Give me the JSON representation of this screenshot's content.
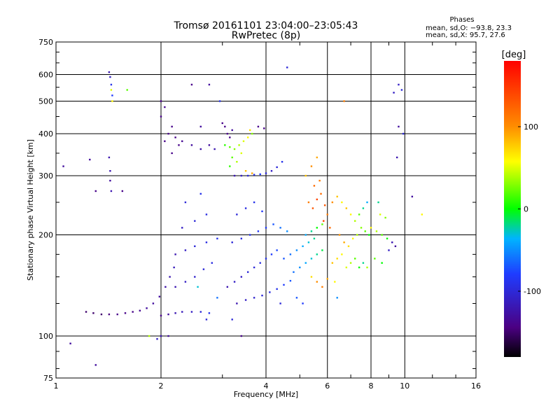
{
  "chart_data": {
    "type": "scatter",
    "title": "Tromsø 20161101 23:04:00–23:05:43",
    "subtitle": "RwPretec (8p)",
    "stats": {
      "heading": "Phases",
      "line_o": "mean, sd,O: −93.8, 23.3",
      "line_x": "mean, sd,X:  95.7, 27.6"
    },
    "xlabel": "Frequency [MHz]",
    "ylabel": "Stationary phase Virtual Height [km]",
    "x_scale": "log",
    "y_scale": "log",
    "xlim": [
      1,
      16
    ],
    "ylim": [
      75,
      750
    ],
    "x_ticks": [
      {
        "v": 1,
        "label": "1"
      },
      {
        "v": 2,
        "label": "2"
      },
      {
        "v": 4,
        "label": "4"
      },
      {
        "v": 6,
        "label": "6"
      },
      {
        "v": 8,
        "label": "8"
      },
      {
        "v": 10,
        "label": "10"
      },
      {
        "v": 16,
        "label": "16"
      }
    ],
    "y_ticks": [
      {
        "v": 75,
        "label": "75"
      },
      {
        "v": 100,
        "label": "100"
      },
      {
        "v": 200,
        "label": "200"
      },
      {
        "v": 300,
        "label": "300"
      },
      {
        "v": 400,
        "label": "400"
      },
      {
        "v": 500,
        "label": "500"
      },
      {
        "v": 600,
        "label": "600"
      },
      {
        "v": 750,
        "label": "750"
      }
    ],
    "grid": true,
    "colorbar": {
      "label": "[deg]",
      "range": [
        -180,
        180
      ],
      "ticks": [
        {
          "v": 100,
          "label": "100"
        },
        {
          "v": 0,
          "label": "0"
        },
        {
          "v": -100,
          "label": "-100"
        }
      ]
    },
    "series": [
      {
        "f": 1.22,
        "h": 118,
        "p": -150
      },
      {
        "f": 1.28,
        "h": 117,
        "p": -150
      },
      {
        "f": 1.35,
        "h": 116,
        "p": -150
      },
      {
        "f": 1.42,
        "h": 116,
        "p": -145
      },
      {
        "f": 1.5,
        "h": 116,
        "p": -140
      },
      {
        "f": 1.58,
        "h": 117,
        "p": -140
      },
      {
        "f": 1.66,
        "h": 118,
        "p": -140
      },
      {
        "f": 1.74,
        "h": 119,
        "p": -135
      },
      {
        "f": 1.82,
        "h": 121,
        "p": -130
      },
      {
        "f": 1.9,
        "h": 125,
        "p": -130
      },
      {
        "f": 1.98,
        "h": 131,
        "p": -130
      },
      {
        "f": 2.06,
        "h": 140,
        "p": -125
      },
      {
        "f": 2.12,
        "h": 150,
        "p": -120
      },
      {
        "f": 2.18,
        "h": 160,
        "p": -115
      },
      {
        "f": 2.0,
        "h": 115,
        "p": -140
      },
      {
        "f": 2.1,
        "h": 116,
        "p": -130
      },
      {
        "f": 2.2,
        "h": 117,
        "p": -120
      },
      {
        "f": 2.3,
        "h": 118,
        "p": -115
      },
      {
        "f": 2.45,
        "h": 118,
        "p": -110
      },
      {
        "f": 2.6,
        "h": 118,
        "p": -100
      },
      {
        "f": 2.75,
        "h": 117,
        "p": -90
      },
      {
        "f": 2.2,
        "h": 140,
        "p": -120
      },
      {
        "f": 2.35,
        "h": 145,
        "p": -110
      },
      {
        "f": 2.5,
        "h": 150,
        "p": -105
      },
      {
        "f": 2.65,
        "h": 158,
        "p": -100
      },
      {
        "f": 2.8,
        "h": 165,
        "p": -95
      },
      {
        "f": 2.2,
        "h": 175,
        "p": -120
      },
      {
        "f": 2.35,
        "h": 180,
        "p": -110
      },
      {
        "f": 2.5,
        "h": 185,
        "p": -100
      },
      {
        "f": 2.7,
        "h": 190,
        "p": -95
      },
      {
        "f": 2.9,
        "h": 195,
        "p": -90
      },
      {
        "f": 2.3,
        "h": 210,
        "p": -110
      },
      {
        "f": 2.5,
        "h": 220,
        "p": -100
      },
      {
        "f": 2.7,
        "h": 230,
        "p": -95
      },
      {
        "f": 2.35,
        "h": 250,
        "p": -100
      },
      {
        "f": 2.6,
        "h": 265,
        "p": -90
      },
      {
        "f": 2.05,
        "h": 380,
        "p": -140
      },
      {
        "f": 2.1,
        "h": 400,
        "p": -140
      },
      {
        "f": 2.15,
        "h": 420,
        "p": -140
      },
      {
        "f": 2.2,
        "h": 390,
        "p": -140
      },
      {
        "f": 2.25,
        "h": 370,
        "p": -140
      },
      {
        "f": 2.0,
        "h": 450,
        "p": -140
      },
      {
        "f": 2.05,
        "h": 480,
        "p": -135
      },
      {
        "f": 2.15,
        "h": 350,
        "p": -140
      },
      {
        "f": 2.3,
        "h": 380,
        "p": -135
      },
      {
        "f": 2.45,
        "h": 370,
        "p": -130
      },
      {
        "f": 2.6,
        "h": 360,
        "p": -125
      },
      {
        "f": 2.75,
        "h": 370,
        "p": -130
      },
      {
        "f": 2.85,
        "h": 360,
        "p": -120
      },
      {
        "f": 2.6,
        "h": 420,
        "p": -130
      },
      {
        "f": 2.95,
        "h": 500,
        "p": -90
      },
      {
        "f": 3.05,
        "h": 420,
        "p": -140
      },
      {
        "f": 3.1,
        "h": 400,
        "p": -140
      },
      {
        "f": 3.15,
        "h": 390,
        "p": -140
      },
      {
        "f": 3.2,
        "h": 410,
        "p": -130
      },
      {
        "f": 3.0,
        "h": 430,
        "p": -140
      },
      {
        "f": 3.05,
        "h": 370,
        "p": 10
      },
      {
        "f": 3.15,
        "h": 365,
        "p": 20
      },
      {
        "f": 3.25,
        "h": 360,
        "p": 30
      },
      {
        "f": 3.35,
        "h": 370,
        "p": 40
      },
      {
        "f": 3.45,
        "h": 380,
        "p": 50
      },
      {
        "f": 3.55,
        "h": 390,
        "p": 60
      },
      {
        "f": 3.65,
        "h": 400,
        "p": 30
      },
      {
        "f": 3.2,
        "h": 340,
        "p": 20
      },
      {
        "f": 3.3,
        "h": 330,
        "p": 40
      },
      {
        "f": 3.15,
        "h": 320,
        "p": 10
      },
      {
        "f": 3.4,
        "h": 350,
        "p": 50
      },
      {
        "f": 3.6,
        "h": 410,
        "p": 70
      },
      {
        "f": 3.25,
        "h": 300,
        "p": -120
      },
      {
        "f": 3.4,
        "h": 300,
        "p": -110
      },
      {
        "f": 3.55,
        "h": 300,
        "p": -100
      },
      {
        "f": 3.7,
        "h": 302,
        "p": -90
      },
      {
        "f": 3.85,
        "h": 303,
        "p": -80
      },
      {
        "f": 4.0,
        "h": 305,
        "p": -100
      },
      {
        "f": 4.15,
        "h": 310,
        "p": -110
      },
      {
        "f": 4.3,
        "h": 318,
        "p": -100
      },
      {
        "f": 4.45,
        "h": 330,
        "p": -90
      },
      {
        "f": 3.5,
        "h": 310,
        "p": 80
      },
      {
        "f": 3.65,
        "h": 305,
        "p": 90
      },
      {
        "f": 3.8,
        "h": 420,
        "p": -140
      },
      {
        "f": 3.95,
        "h": 415,
        "p": -140
      },
      {
        "f": 3.1,
        "h": 140,
        "p": -120
      },
      {
        "f": 3.25,
        "h": 145,
        "p": -110
      },
      {
        "f": 3.4,
        "h": 150,
        "p": -110
      },
      {
        "f": 3.55,
        "h": 155,
        "p": -100
      },
      {
        "f": 3.7,
        "h": 160,
        "p": -100
      },
      {
        "f": 3.85,
        "h": 165,
        "p": -95
      },
      {
        "f": 4.0,
        "h": 170,
        "p": -90
      },
      {
        "f": 4.15,
        "h": 175,
        "p": -80
      },
      {
        "f": 4.3,
        "h": 180,
        "p": -75
      },
      {
        "f": 3.3,
        "h": 125,
        "p": -120
      },
      {
        "f": 3.5,
        "h": 128,
        "p": -110
      },
      {
        "f": 3.7,
        "h": 130,
        "p": -105
      },
      {
        "f": 3.9,
        "h": 132,
        "p": -100
      },
      {
        "f": 4.1,
        "h": 135,
        "p": -95
      },
      {
        "f": 4.3,
        "h": 138,
        "p": -90
      },
      {
        "f": 4.5,
        "h": 142,
        "p": -80
      },
      {
        "f": 4.7,
        "h": 146,
        "p": -70
      },
      {
        "f": 3.2,
        "h": 190,
        "p": -100
      },
      {
        "f": 3.4,
        "h": 195,
        "p": -95
      },
      {
        "f": 3.6,
        "h": 200,
        "p": -90
      },
      {
        "f": 3.8,
        "h": 205,
        "p": -85
      },
      {
        "f": 4.0,
        "h": 210,
        "p": -80
      },
      {
        "f": 4.2,
        "h": 215,
        "p": -70
      },
      {
        "f": 4.4,
        "h": 210,
        "p": -60
      },
      {
        "f": 4.6,
        "h": 205,
        "p": -50
      },
      {
        "f": 3.3,
        "h": 230,
        "p": -100
      },
      {
        "f": 3.5,
        "h": 240,
        "p": -95
      },
      {
        "f": 3.7,
        "h": 250,
        "p": -90
      },
      {
        "f": 3.9,
        "h": 235,
        "p": -85
      },
      {
        "f": 4.5,
        "h": 170,
        "p": -70
      },
      {
        "f": 4.7,
        "h": 175,
        "p": -60
      },
      {
        "f": 4.9,
        "h": 180,
        "p": -50
      },
      {
        "f": 5.1,
        "h": 185,
        "p": -40
      },
      {
        "f": 5.3,
        "h": 190,
        "p": -30
      },
      {
        "f": 5.5,
        "h": 195,
        "p": -20
      },
      {
        "f": 4.8,
        "h": 155,
        "p": -60
      },
      {
        "f": 5.0,
        "h": 160,
        "p": -50
      },
      {
        "f": 5.2,
        "h": 165,
        "p": -40
      },
      {
        "f": 5.4,
        "h": 170,
        "p": -30
      },
      {
        "f": 5.6,
        "h": 175,
        "p": -20
      },
      {
        "f": 5.8,
        "h": 180,
        "p": -10
      },
      {
        "f": 5.2,
        "h": 200,
        "p": -40
      },
      {
        "f": 5.4,
        "h": 205,
        "p": -20
      },
      {
        "f": 5.6,
        "h": 210,
        "p": 0
      },
      {
        "f": 5.8,
        "h": 215,
        "p": 20
      },
      {
        "f": 5.3,
        "h": 250,
        "p": 110
      },
      {
        "f": 5.45,
        "h": 240,
        "p": 130
      },
      {
        "f": 5.6,
        "h": 255,
        "p": 140
      },
      {
        "f": 5.75,
        "h": 265,
        "p": 120
      },
      {
        "f": 5.9,
        "h": 245,
        "p": 130
      },
      {
        "f": 6.0,
        "h": 230,
        "p": 110
      },
      {
        "f": 5.5,
        "h": 280,
        "p": 120
      },
      {
        "f": 5.7,
        "h": 290,
        "p": 110
      },
      {
        "f": 5.85,
        "h": 220,
        "p": 140
      },
      {
        "f": 6.1,
        "h": 210,
        "p": 120
      },
      {
        "f": 5.4,
        "h": 320,
        "p": 100
      },
      {
        "f": 5.6,
        "h": 340,
        "p": 90
      },
      {
        "f": 5.2,
        "h": 300,
        "p": 80
      },
      {
        "f": 6.2,
        "h": 250,
        "p": 100
      },
      {
        "f": 6.4,
        "h": 260,
        "p": 80
      },
      {
        "f": 6.6,
        "h": 250,
        "p": 60
      },
      {
        "f": 6.8,
        "h": 240,
        "p": 80
      },
      {
        "f": 7.0,
        "h": 230,
        "p": 60
      },
      {
        "f": 7.2,
        "h": 220,
        "p": 40
      },
      {
        "f": 7.4,
        "h": 230,
        "p": 20
      },
      {
        "f": 7.6,
        "h": 240,
        "p": -20
      },
      {
        "f": 7.8,
        "h": 250,
        "p": -40
      },
      {
        "f": 6.5,
        "h": 200,
        "p": 100
      },
      {
        "f": 6.7,
        "h": 190,
        "p": 90
      },
      {
        "f": 6.9,
        "h": 185,
        "p": 70
      },
      {
        "f": 7.1,
        "h": 195,
        "p": 60
      },
      {
        "f": 7.3,
        "h": 200,
        "p": 40
      },
      {
        "f": 7.5,
        "h": 210,
        "p": 30
      },
      {
        "f": 7.7,
        "h": 205,
        "p": 20
      },
      {
        "f": 7.9,
        "h": 200,
        "p": 0
      },
      {
        "f": 6.2,
        "h": 165,
        "p": 80
      },
      {
        "f": 6.4,
        "h": 170,
        "p": 70
      },
      {
        "f": 6.6,
        "h": 175,
        "p": 60
      },
      {
        "f": 6.8,
        "h": 160,
        "p": 50
      },
      {
        "f": 7.0,
        "h": 165,
        "p": 40
      },
      {
        "f": 7.2,
        "h": 170,
        "p": 20
      },
      {
        "f": 7.4,
        "h": 160,
        "p": 0
      },
      {
        "f": 7.6,
        "h": 165,
        "p": -20
      },
      {
        "f": 5.6,
        "h": 145,
        "p": 100
      },
      {
        "f": 5.8,
        "h": 140,
        "p": 110
      },
      {
        "f": 6.0,
        "h": 148,
        "p": 90
      },
      {
        "f": 5.4,
        "h": 150,
        "p": 70
      },
      {
        "f": 6.3,
        "h": 145,
        "p": 60
      },
      {
        "f": 8.0,
        "h": 210,
        "p": 60
      },
      {
        "f": 8.3,
        "h": 205,
        "p": 40
      },
      {
        "f": 8.6,
        "h": 200,
        "p": 20
      },
      {
        "f": 8.9,
        "h": 195,
        "p": 0
      },
      {
        "f": 9.2,
        "h": 190,
        "p": -120
      },
      {
        "f": 9.4,
        "h": 185,
        "p": -130
      },
      {
        "f": 9.0,
        "h": 180,
        "p": -110
      },
      {
        "f": 8.5,
        "h": 230,
        "p": 50
      },
      {
        "f": 8.8,
        "h": 225,
        "p": 30
      },
      {
        "f": 8.2,
        "h": 170,
        "p": 20
      },
      {
        "f": 8.6,
        "h": 165,
        "p": 0
      },
      {
        "f": 7.8,
        "h": 160,
        "p": 40
      },
      {
        "f": 8.4,
        "h": 250,
        "p": -20
      },
      {
        "f": 9.6,
        "h": 560,
        "p": -110
      },
      {
        "f": 9.8,
        "h": 540,
        "p": -100
      },
      {
        "f": 9.3,
        "h": 530,
        "p": -110
      },
      {
        "f": 9.6,
        "h": 420,
        "p": -130
      },
      {
        "f": 9.9,
        "h": 400,
        "p": -100
      },
      {
        "f": 9.5,
        "h": 340,
        "p": -120
      },
      {
        "f": 10.5,
        "h": 260,
        "p": -130
      },
      {
        "f": 11.2,
        "h": 230,
        "p": 60
      },
      {
        "f": 1.42,
        "h": 610,
        "p": -120
      },
      {
        "f": 1.43,
        "h": 590,
        "p": -110
      },
      {
        "f": 1.44,
        "h": 560,
        "p": -90
      },
      {
        "f": 1.44,
        "h": 540,
        "p": 50
      },
      {
        "f": 1.45,
        "h": 520,
        "p": -80
      },
      {
        "f": 1.45,
        "h": 500,
        "p": 60
      },
      {
        "f": 1.42,
        "h": 340,
        "p": -120
      },
      {
        "f": 1.43,
        "h": 310,
        "p": -120
      },
      {
        "f": 1.43,
        "h": 290,
        "p": -130
      },
      {
        "f": 1.44,
        "h": 270,
        "p": -120
      },
      {
        "f": 1.6,
        "h": 540,
        "p": 20
      },
      {
        "f": 1.05,
        "h": 320,
        "p": -130
      },
      {
        "f": 1.25,
        "h": 335,
        "p": -130
      },
      {
        "f": 1.3,
        "h": 270,
        "p": -140
      },
      {
        "f": 1.55,
        "h": 270,
        "p": -140
      },
      {
        "f": 1.1,
        "h": 95,
        "p": -130
      },
      {
        "f": 1.3,
        "h": 82,
        "p": -130
      },
      {
        "f": 1.95,
        "h": 98,
        "p": -110
      },
      {
        "f": 2.0,
        "h": 100,
        "p": -120
      },
      {
        "f": 2.1,
        "h": 100,
        "p": -130
      },
      {
        "f": 1.85,
        "h": 100,
        "p": 40
      },
      {
        "f": 2.7,
        "h": 112,
        "p": -100
      },
      {
        "f": 3.2,
        "h": 112,
        "p": -100
      },
      {
        "f": 3.4,
        "h": 100,
        "p": -140
      },
      {
        "f": 4.6,
        "h": 630,
        "p": -100
      },
      {
        "f": 5.1,
        "h": 125,
        "p": -80
      },
      {
        "f": 4.4,
        "h": 125,
        "p": -100
      },
      {
        "f": 4.9,
        "h": 130,
        "p": -70
      },
      {
        "f": 6.4,
        "h": 130,
        "p": -50
      },
      {
        "f": 6.7,
        "h": 500,
        "p": 110
      },
      {
        "f": 2.9,
        "h": 130,
        "p": -60
      },
      {
        "f": 2.45,
        "h": 560,
        "p": -140
      },
      {
        "f": 2.75,
        "h": 560,
        "p": -130
      },
      {
        "f": 2.0,
        "h": 500,
        "p": -140
      },
      {
        "f": 2.55,
        "h": 140,
        "p": -30
      }
    ]
  }
}
